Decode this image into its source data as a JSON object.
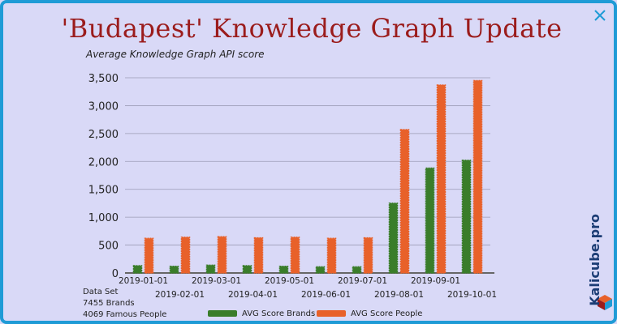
{
  "chart_data": {
    "type": "bar",
    "title": "'Budapest' Knowledge Graph Update",
    "ylabel": "Average Knowledge Graph API score",
    "ylim": [
      0,
      3500
    ],
    "yticks": [
      "0",
      "500",
      "1,000",
      "1,500",
      "2,000",
      "2,500",
      "3,000",
      "3,500"
    ],
    "ytick_values": [
      0,
      500,
      1000,
      1500,
      2000,
      2500,
      3000,
      3500
    ],
    "categories": [
      "2019-01-01",
      "2019-02-01",
      "2019-03-01",
      "2019-04-01",
      "2019-05-01",
      "2019-06-01",
      "2019-07-01",
      "2019-08-01",
      "2019-09-01",
      "2019-10-01"
    ],
    "series": [
      {
        "name": "AVG Score Brands",
        "color": "#3a7d2a",
        "values": [
          130,
          120,
          140,
          130,
          120,
          110,
          110,
          1250,
          1880,
          2020
        ]
      },
      {
        "name": "AVG Score People",
        "color": "#e8612a",
        "values": [
          620,
          640,
          650,
          630,
          640,
          620,
          630,
          2570,
          3370,
          3450
        ]
      }
    ],
    "grid": true,
    "legend_position": "bottom"
  },
  "info": {
    "line1": "Data Set",
    "line2": "7455 Brands",
    "line3": "4069 Famous People"
  },
  "brand": "Kalicube.pro",
  "colors": {
    "frame": "#1f9bd6",
    "background": "#d9d9f7",
    "title": "#9b1c1c"
  }
}
